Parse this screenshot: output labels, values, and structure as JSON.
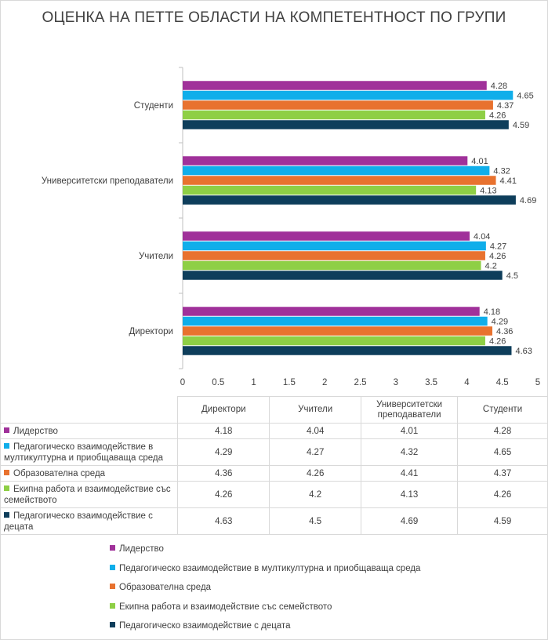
{
  "chart_data": {
    "type": "bar",
    "orientation": "horizontal",
    "title": "ОЦЕНКА НА ПЕТТЕ ОБЛАСТИ НА КОМПЕТЕНТНОСТ ПО ГРУПИ",
    "categories": [
      "Директори",
      "Учители",
      "Университетски преподаватели",
      "Студенти"
    ],
    "xlim": [
      0,
      5
    ],
    "xticks": [
      "0",
      "0.5",
      "1",
      "1.5",
      "2",
      "2.5",
      "3",
      "3.5",
      "4",
      "4.5",
      "5"
    ],
    "grid": false,
    "data_table": true,
    "legend_position": "bottom",
    "series": [
      {
        "name": "Лидерство",
        "color": "#a0319a",
        "values": [
          4.18,
          4.04,
          4.01,
          4.28
        ],
        "labels": [
          "4.18",
          "4.04",
          "4.01",
          "4.28"
        ]
      },
      {
        "name": "Педагогическо взаимодействие в мултикултурна и приобщаваща среда",
        "table_name": [
          "Педагогическо взаимодействие в",
          "мултикултурна и приобщаваща среда"
        ],
        "color": "#10aeea",
        "values": [
          4.29,
          4.27,
          4.32,
          4.65
        ],
        "labels": [
          "4.29",
          "4.27",
          "4.32",
          "4.65"
        ]
      },
      {
        "name": "Образователна среда",
        "color": "#e8722f",
        "values": [
          4.36,
          4.26,
          4.41,
          4.37
        ],
        "labels": [
          "4.36",
          "4.26",
          "4.41",
          "4.37"
        ]
      },
      {
        "name": "Екипна работа и взаимодействие със семейството",
        "table_name": [
          "Екипна работа и взаимодействие със",
          "семейството"
        ],
        "color": "#8ecf45",
        "values": [
          4.26,
          4.2,
          4.13,
          4.26
        ],
        "labels": [
          "4.26",
          "4.2",
          "4.13",
          "4.26"
        ]
      },
      {
        "name": "Педагогическо взаимодействие с децата",
        "table_name": [
          "Педагогическо взаимодействие с",
          "децата"
        ],
        "color": "#0e3e5b",
        "values": [
          4.63,
          4.5,
          4.69,
          4.59
        ],
        "labels": [
          "4.63",
          "4.5",
          "4.69",
          "4.59"
        ]
      }
    ],
    "table_headers": [
      [
        "Директори"
      ],
      [
        "Учители"
      ],
      [
        "Университетски",
        "преподаватели"
      ],
      [
        "Студенти"
      ]
    ]
  }
}
